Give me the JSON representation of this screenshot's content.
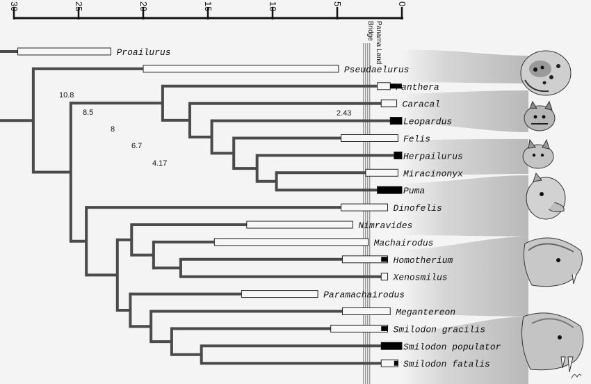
{
  "axis": {
    "ticks": [
      "30",
      "25",
      "20",
      "15",
      "10",
      "5",
      "0"
    ],
    "range": [
      30,
      0
    ]
  },
  "event": {
    "label_1": "Panama Land",
    "label_2": "Bridge",
    "age": 2.7
  },
  "taxa": [
    {
      "name": "Proailurus",
      "fossil_range": [
        29.7,
        22.5
      ]
    },
    {
      "name": "Pseudaelurus",
      "fossil_range": [
        20,
        4.9
      ]
    },
    {
      "name": "Panthera",
      "fossil_range": [
        1.9,
        0.9
      ],
      "fossil_range_2": [
        0.9,
        0
      ]
    },
    {
      "name": "Caracal",
      "fossil_range": [
        1.6,
        0.4
      ]
    },
    {
      "name": "Leopardus",
      "fossil_range": [
        0.9,
        0
      ]
    },
    {
      "name": "Felis",
      "fossil_range": [
        4.7,
        0.3
      ]
    },
    {
      "name": "Herpailurus",
      "fossil_range": [
        0.6,
        0
      ]
    },
    {
      "name": "Miracinonyx",
      "fossil_range": [
        2.8,
        0.3
      ]
    },
    {
      "name": "Puma",
      "fossil_range": [
        1.9,
        0
      ]
    },
    {
      "name": "Dinofelis",
      "fossil_range": [
        4.7,
        1.1
      ]
    },
    {
      "name": "Nimravides",
      "fossil_range": [
        12,
        3.8
      ]
    },
    {
      "name": "Machairodus",
      "fossil_range": [
        14.5,
        2.6
      ]
    },
    {
      "name": "Homotherium",
      "fossil_range": [
        4.6,
        1.1
      ],
      "fossil_range_2": [
        1.6,
        1.1
      ]
    },
    {
      "name": "Xenosmilus",
      "fossil_range": [
        1.6,
        1.1
      ]
    },
    {
      "name": "Paramachairodus",
      "fossil_range": [
        12.4,
        6.5
      ]
    },
    {
      "name": "Megantereon",
      "fossil_range": [
        4.6,
        0.9
      ]
    },
    {
      "name": "Smilodon gracilis",
      "fossil_range": [
        5.5,
        1.1
      ],
      "fossil_range_2": [
        1.6,
        1.1
      ]
    },
    {
      "name": "Smilodon populator",
      "fossil_range": [
        1.6,
        0
      ]
    },
    {
      "name": "Smilodon fatalis",
      "fossil_range": [
        1.6,
        0.3
      ],
      "fossil_range_2": [
        0.6,
        0.3
      ]
    }
  ],
  "node_ages": [
    "10.8",
    "8.5",
    "8",
    "6.7",
    "4.17",
    "2.43"
  ],
  "illustrations": [
    "jaguar-head",
    "ocelot-head",
    "lynx-head",
    "puma-head",
    "homotherium-head",
    "smilodon-head"
  ],
  "colors": {
    "branch": "#4a4a4a",
    "bar_fill": "#f7f7f7",
    "bar_dark": "#000000",
    "fan": "#bdbdbd"
  }
}
